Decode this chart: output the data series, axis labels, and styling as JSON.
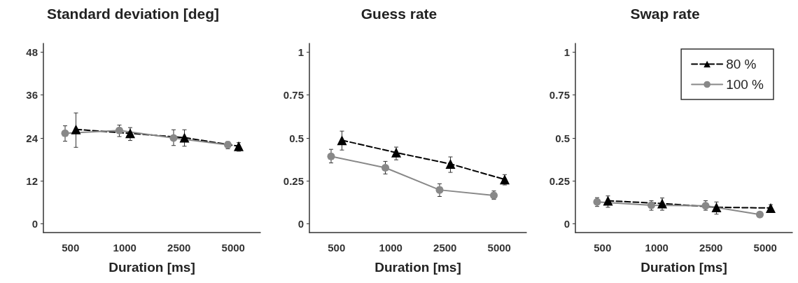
{
  "chart_data": [
    {
      "type": "line",
      "title": "Standard deviation [deg]",
      "xlabel": "Duration [ms]",
      "categories": [
        "500",
        "1000",
        "2500",
        "5000"
      ],
      "ylim": [
        -2.4,
        50.4
      ],
      "yticks": [
        0,
        12,
        24,
        36,
        48
      ],
      "grid": false,
      "legend": false,
      "series": [
        {
          "color": "#000000",
          "marker": "triangle",
          "line_style": "dashed",
          "values": [
            26.4,
            25.3,
            24.1,
            21.7
          ],
          "errors": [
            [
              21.4,
              31.0
            ],
            [
              23.3,
              26.9
            ],
            [
              21.7,
              26.3
            ],
            [
              20.3,
              22.7
            ]
          ]
        },
        {
          "color": "#888888",
          "marker": "circle",
          "line_style": "solid",
          "values": [
            25.3,
            26.1,
            24.0,
            22.1
          ],
          "errors": [
            [
              23.1,
              27.4
            ],
            [
              24.4,
              27.6
            ],
            [
              21.9,
              26.3
            ],
            [
              21.0,
              23.0
            ]
          ]
        }
      ]
    },
    {
      "type": "line",
      "title": "Guess rate",
      "xlabel": "Duration [ms]",
      "categories": [
        "500",
        "1000",
        "2500",
        "5000"
      ],
      "ylim": [
        -0.05,
        1.05
      ],
      "yticks": [
        0,
        0.25,
        0.5,
        0.75,
        1
      ],
      "grid": false,
      "legend": false,
      "series": [
        {
          "color": "#000000",
          "marker": "triangle",
          "line_style": "dashed",
          "values": [
            0.487,
            0.415,
            0.349,
            0.259
          ],
          "errors": [
            [
              0.43,
              0.54
            ],
            [
              0.373,
              0.447
            ],
            [
              0.3,
              0.39
            ],
            [
              0.227,
              0.287
            ]
          ]
        },
        {
          "color": "#888888",
          "marker": "circle",
          "line_style": "solid",
          "values": [
            0.393,
            0.327,
            0.198,
            0.166
          ],
          "errors": [
            [
              0.355,
              0.434
            ],
            [
              0.291,
              0.364
            ],
            [
              0.16,
              0.234
            ],
            [
              0.143,
              0.192
            ]
          ]
        }
      ]
    },
    {
      "type": "line",
      "title": "Swap rate",
      "xlabel": "Duration [ms]",
      "categories": [
        "500",
        "1000",
        "2500",
        "5000"
      ],
      "ylim": [
        -0.05,
        1.05
      ],
      "yticks": [
        0,
        0.25,
        0.5,
        0.75,
        1
      ],
      "grid": false,
      "legend": "top right",
      "series": [
        {
          "name": "80 %",
          "color": "#000000",
          "marker": "triangle",
          "line_style": "dashed",
          "values": [
            0.135,
            0.119,
            0.097,
            0.093
          ],
          "errors": [
            [
              0.097,
              0.163
            ],
            [
              0.08,
              0.151
            ],
            [
              0.057,
              0.128
            ],
            [
              0.074,
              0.112
            ]
          ]
        },
        {
          "name": "100 %",
          "color": "#888888",
          "marker": "circle",
          "line_style": "solid",
          "values": [
            0.128,
            0.109,
            0.106,
            0.055
          ],
          "errors": [
            [
              0.102,
              0.153
            ],
            [
              0.08,
              0.135
            ],
            [
              0.08,
              0.135
            ],
            [
              0.04,
              0.068
            ]
          ]
        }
      ]
    }
  ]
}
